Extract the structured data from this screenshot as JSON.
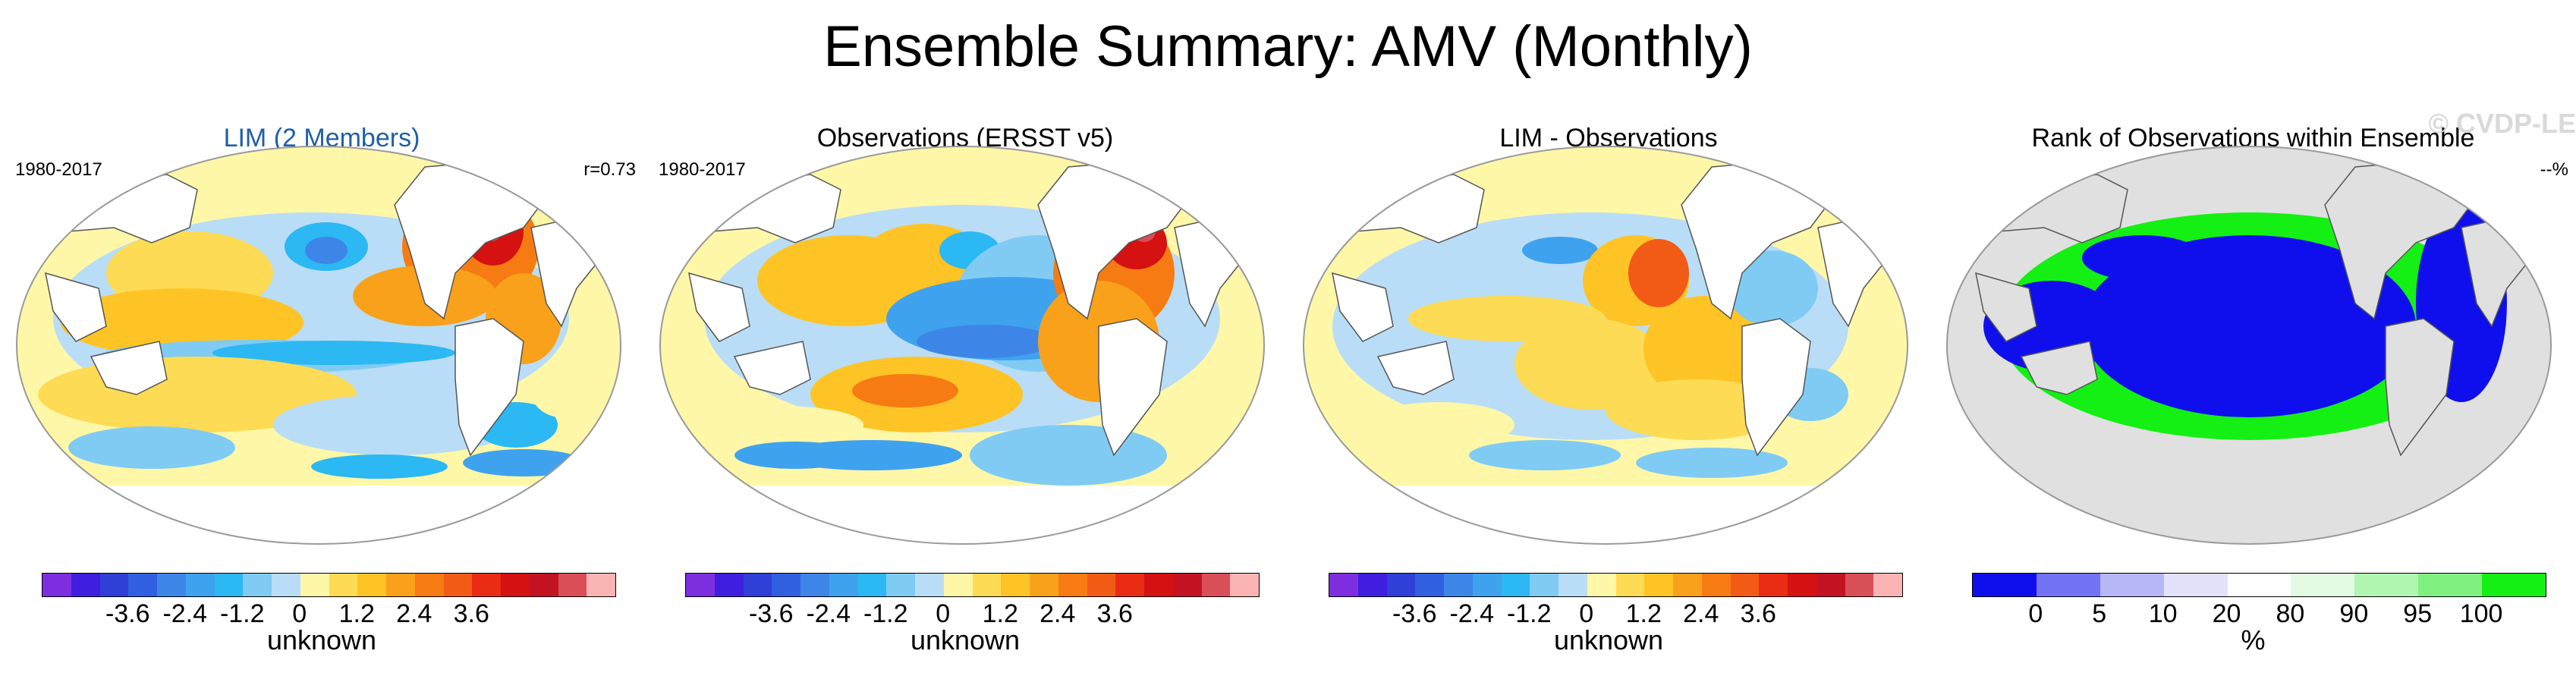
{
  "title": "Ensemble Summary: AMV (Monthly)",
  "watermark": "© CVDP-LE",
  "panels": [
    {
      "title": "LIM (2 Members)",
      "period": "1980-2017",
      "stat": "r=0.73",
      "cbar_label": "unknown"
    },
    {
      "title": "Observations (ERSST v5)",
      "period": "1980-2017",
      "stat": "",
      "cbar_label": "unknown"
    },
    {
      "title": "LIM - Observations",
      "period": "",
      "stat": "",
      "cbar_label": "unknown"
    },
    {
      "title": "Rank of Observations within Ensemble",
      "period": "",
      "stat": "--%",
      "cbar_label": "%"
    }
  ],
  "anomaly_colorbar": {
    "colors": [
      "#7d2fe0",
      "#3f1ee0",
      "#2f3fd8",
      "#3060e0",
      "#3d86e8",
      "#3fa2ee",
      "#2cb8f2",
      "#7fcbf4",
      "#b9ddf6",
      "#fff7a8",
      "#fedb54",
      "#fec425",
      "#f9a11a",
      "#f77b13",
      "#f25b15",
      "#ea2c15",
      "#d51111",
      "#c31323",
      "#d84f58",
      "#fbb4b4"
    ],
    "ticks": [
      "-3.6",
      "-2.4",
      "-1.2",
      "0",
      "1.2",
      "2.4",
      "3.6"
    ]
  },
  "rank_colorbar": {
    "colors": [
      "#0f0fee",
      "#7373f5",
      "#b7b7f8",
      "#e2e2fb",
      "#ffffff",
      "#e2fbe2",
      "#b0f5b0",
      "#80f080",
      "#14f014"
    ],
    "ticks": [
      "0",
      "5",
      "10",
      "20",
      "80",
      "90",
      "95",
      "100"
    ]
  }
}
